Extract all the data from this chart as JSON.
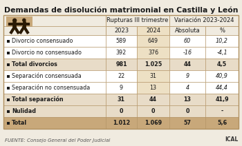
{
  "title": "Demandas de disolución matrimonial en Castilla y León",
  "header1_left": "Rupturas III trimestre",
  "header1_right": "Variación 2023-2024",
  "col_headers_sub": [
    "2023",
    "2024",
    "Absoluta",
    "%"
  ],
  "rows": [
    {
      "label": "Divorcio consensuado",
      "bold": false,
      "vals": [
        "589",
        "649",
        "60",
        "10,2"
      ],
      "bg": "white"
    },
    {
      "label": "Divorcio no consensuado",
      "bold": false,
      "vals": [
        "392",
        "376",
        "-16",
        "-4,1"
      ],
      "bg": "white"
    },
    {
      "label": "Total divorcios",
      "bold": true,
      "vals": [
        "981",
        "1.025",
        "44",
        "4,5"
      ],
      "bg": "total_light"
    },
    {
      "label": "Separación consensuada",
      "bold": false,
      "vals": [
        "22",
        "31",
        "9",
        "40,9"
      ],
      "bg": "white"
    },
    {
      "label": "Separación no consensuada",
      "bold": false,
      "vals": [
        "9",
        "13",
        "4",
        "44,4"
      ],
      "bg": "white"
    },
    {
      "label": "Total separación",
      "bold": true,
      "vals": [
        "31",
        "44",
        "13",
        "41,9"
      ],
      "bg": "total_light"
    },
    {
      "label": "Nulidad",
      "bold": true,
      "vals": [
        "0",
        "0",
        "0",
        "-"
      ],
      "bg": "total_light"
    },
    {
      "label": "Total",
      "bold": true,
      "vals": [
        "1.012",
        "1.069",
        "57",
        "5,6"
      ],
      "bg": "total_dark"
    }
  ],
  "footer_left": "FUENTE: Consejo General del Poder Judicial",
  "footer_right": "ICAL",
  "bg_color": "#f0ebe0",
  "white_row_bg": "#ffffff",
  "total_light_bg": "#e8dcc8",
  "total_dark_bg": "#c8a87a",
  "col2024_bg": "#ede0c4",
  "border_color": "#b09060",
  "text_color": "#1a1a1a",
  "title_fontsize": 7.8,
  "body_fontsize": 5.8,
  "header_fontsize": 6.0,
  "silhouette_bg": "#c8a87a",
  "silhouette_dark": "#2a1a05"
}
